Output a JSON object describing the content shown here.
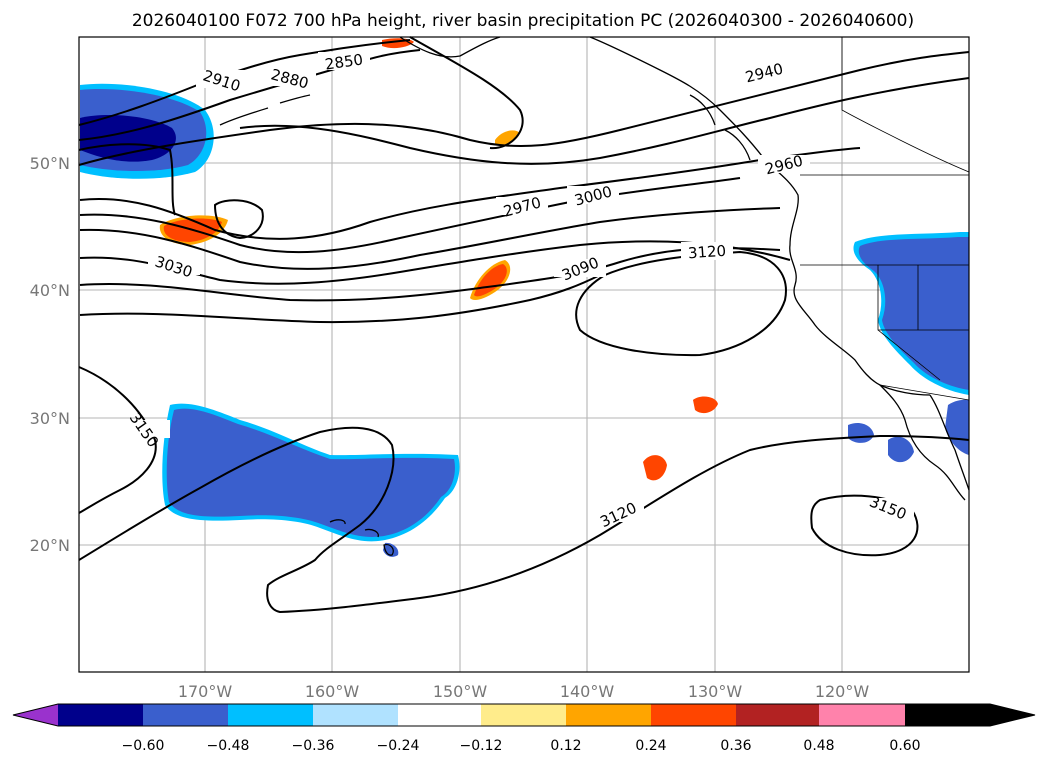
{
  "title": "2026040100 F072 700 hPa height, river basin precipitation PC (2026040300 - 2026040600)",
  "lat_labels": [
    "50°N",
    "40°N",
    "30°N",
    "20°N"
  ],
  "lon_labels": [
    "170°W",
    "160°W",
    "150°W",
    "140°W",
    "130°W",
    "120°W"
  ],
  "contour_labels": [
    "2850",
    "2880",
    "2910",
    "2940",
    "2960",
    "2970",
    "3000",
    "3030",
    "3090",
    "3120",
    "3120",
    "3150",
    "3150"
  ],
  "colorbar": {
    "ticks": [
      "−0.60",
      "−0.48",
      "−0.36",
      "−0.24",
      "−0.12",
      "0.12",
      "0.24",
      "0.36",
      "0.48",
      "0.60"
    ],
    "colors": [
      "#9a32cd",
      "#00008b",
      "#3a5fcd",
      "#00bfff",
      "#b0e2ff",
      "#ffffff",
      "#ffec8b",
      "#ffa500",
      "#ff4500",
      "#b22222",
      "#ff82ab"
    ]
  },
  "colors": {
    "deep_blue": "#00008b",
    "blue": "#3a5fcd",
    "cyan": "#00bfff",
    "orange": "#ffa500",
    "red_orange": "#ff4500"
  }
}
